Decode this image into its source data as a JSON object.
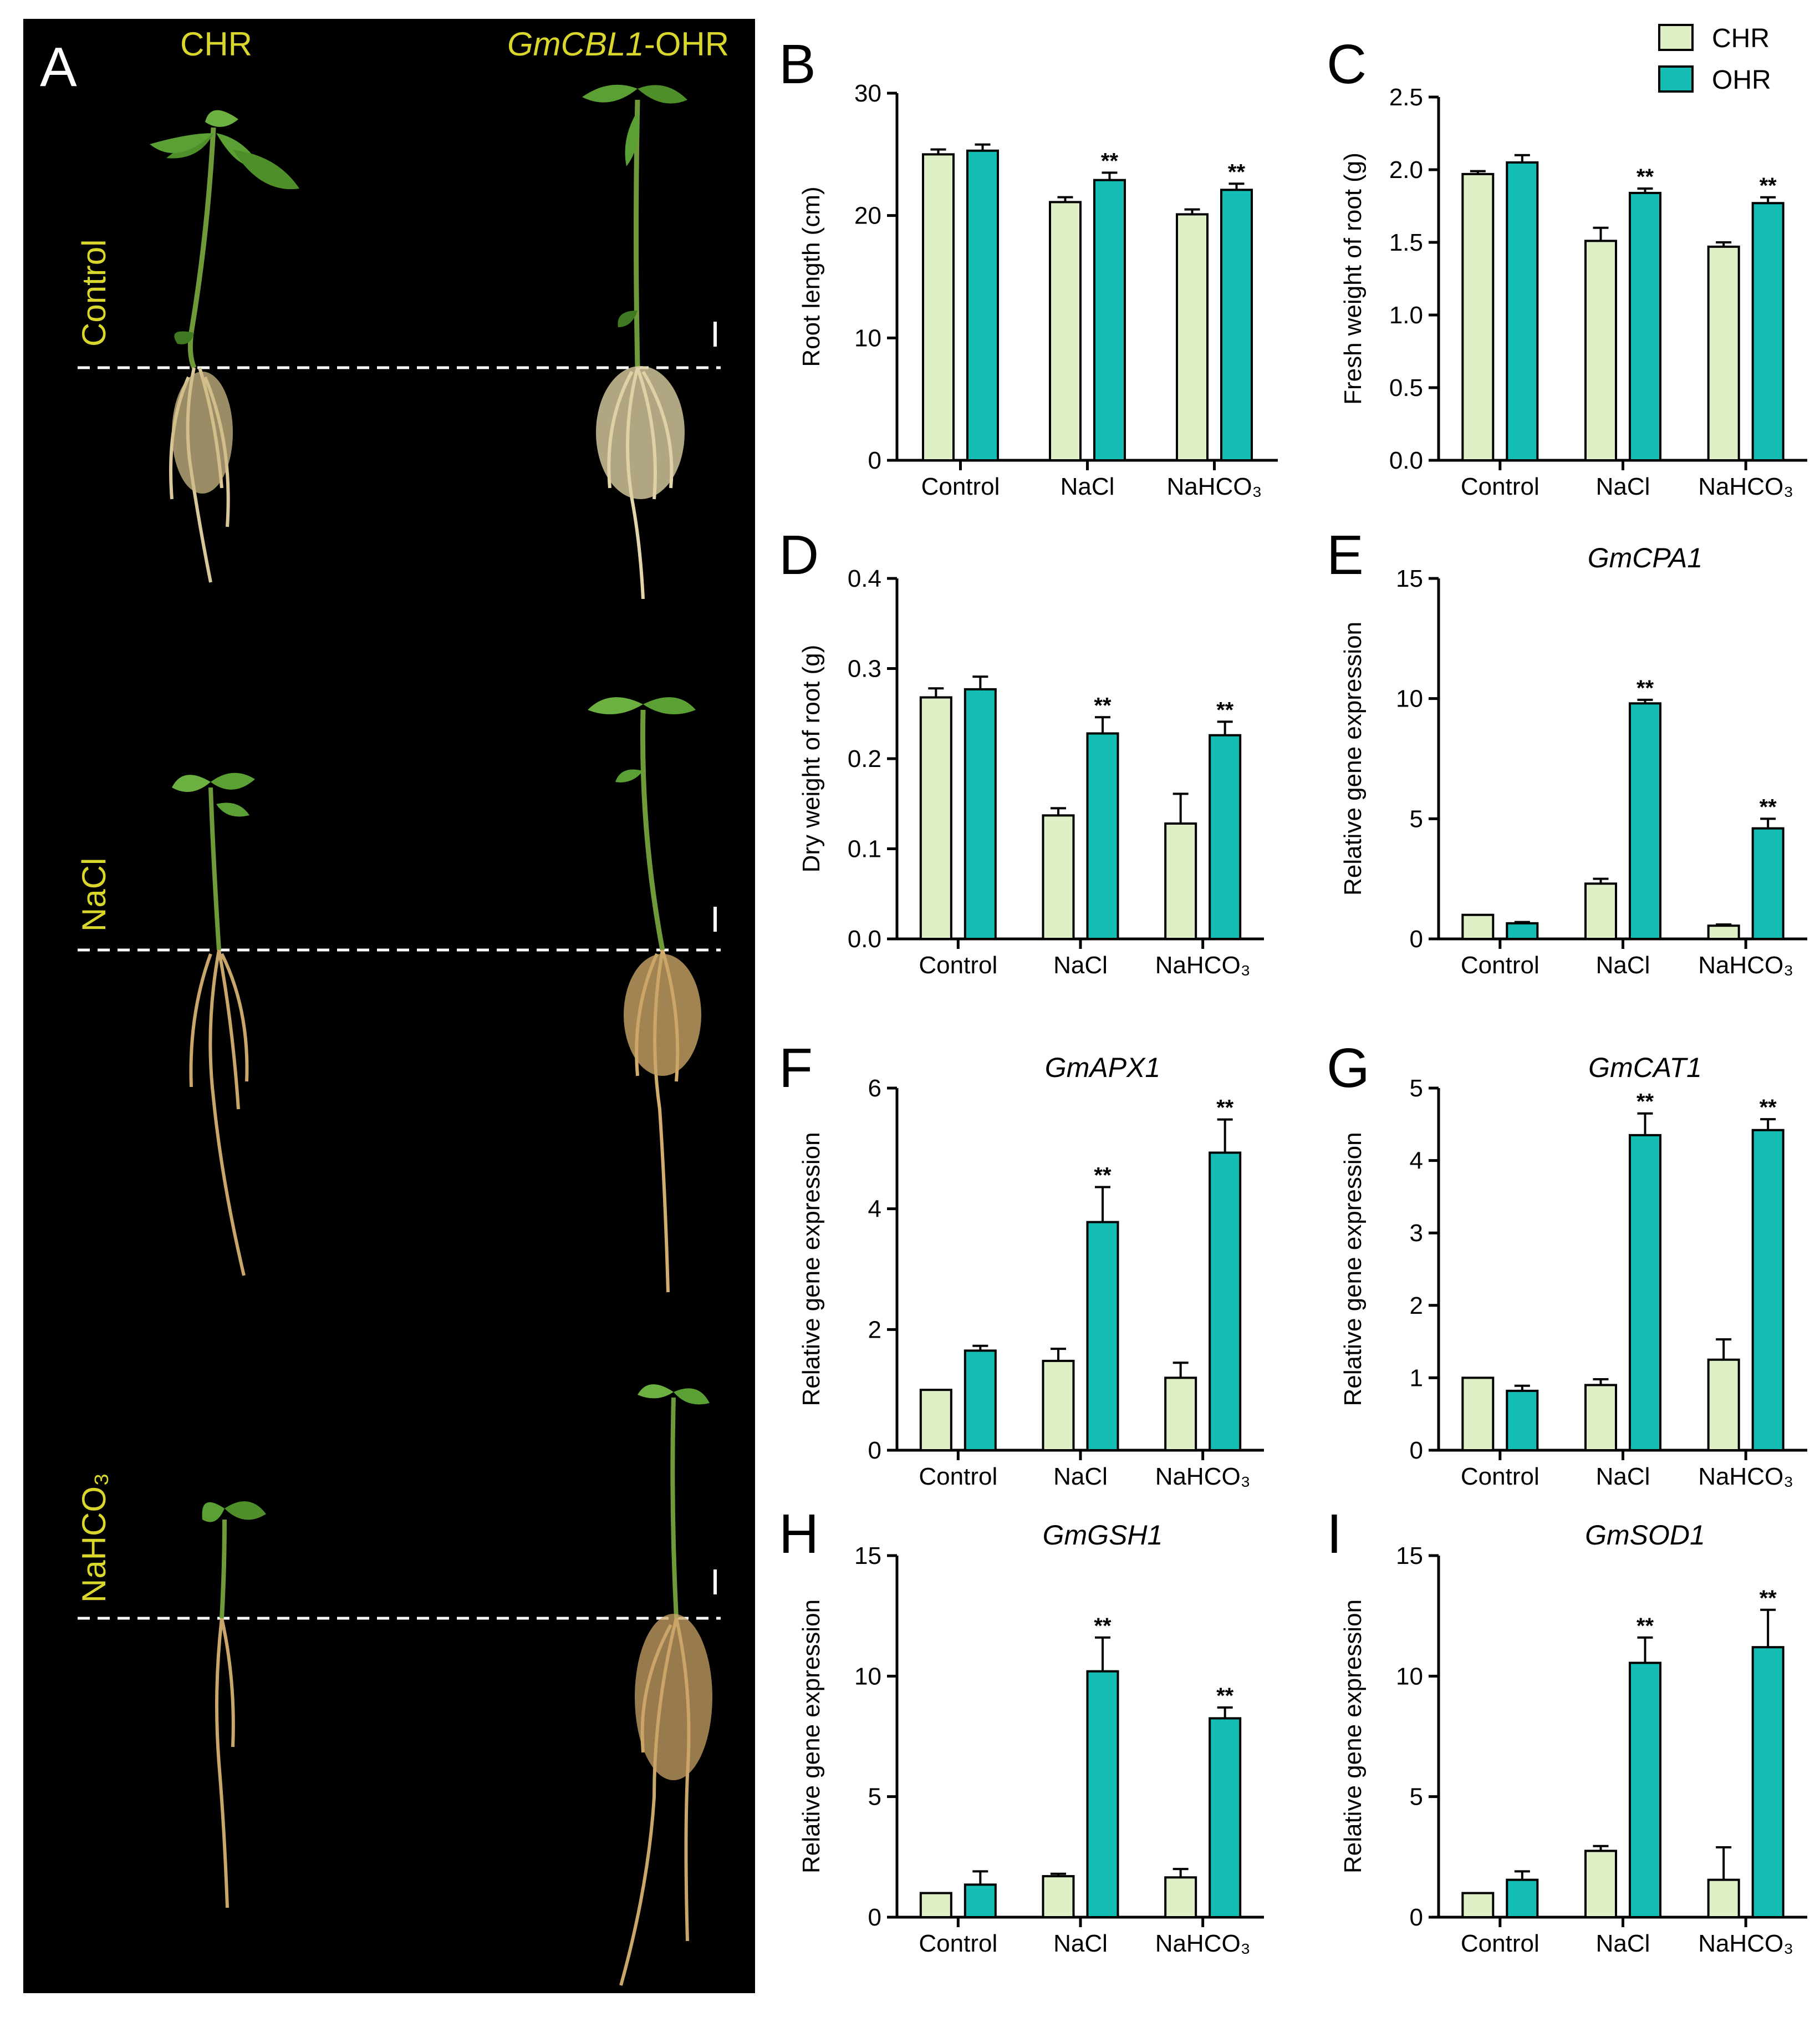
{
  "colors": {
    "chr": "#dff0c6",
    "ohr": "#14bdb3",
    "stroke": "#000000",
    "photo_label": "#d9d62c"
  },
  "photo_panel": {
    "letter": "A",
    "col_labels": [
      "CHR",
      "GmCBL1",
      "-OHR"
    ],
    "row_labels": [
      "Control",
      "NaCl",
      "NaHCO₃"
    ]
  },
  "legend": [
    "CHR",
    "OHR"
  ],
  "chart_data": [
    {
      "letter": "B",
      "type": "bar",
      "title": "",
      "ylabel": "Root length (cm)",
      "ylim": [
        0,
        30
      ],
      "yticks": [
        "0",
        "10",
        "20",
        "30"
      ],
      "categories": [
        "Control",
        "NaCl",
        "NaHCO₃"
      ],
      "series": [
        {
          "name": "CHR",
          "values": [
            25.0,
            21.1,
            20.1
          ],
          "errors": [
            0.4,
            0.4,
            0.4
          ]
        },
        {
          "name": "OHR",
          "values": [
            25.3,
            22.9,
            22.1
          ],
          "errors": [
            0.5,
            0.6,
            0.5
          ]
        }
      ],
      "sig": [
        "",
        "**",
        "**"
      ]
    },
    {
      "letter": "C",
      "type": "bar",
      "title": "",
      "ylabel": "Fresh weight of root (g)",
      "ylim": [
        0,
        2.5
      ],
      "yticks": [
        "0.0",
        "0.5",
        "1.0",
        "1.5",
        "2.0",
        "2.5"
      ],
      "categories": [
        "Control",
        "NaCl",
        "NaHCO₃"
      ],
      "series": [
        {
          "name": "CHR",
          "values": [
            1.97,
            1.51,
            1.47
          ],
          "errors": [
            0.02,
            0.09,
            0.03
          ]
        },
        {
          "name": "OHR",
          "values": [
            2.05,
            1.84,
            1.77
          ],
          "errors": [
            0.05,
            0.03,
            0.04
          ]
        }
      ],
      "sig": [
        "",
        "**",
        "**"
      ]
    },
    {
      "letter": "D",
      "type": "bar",
      "title": "",
      "ylabel": "Dry weight of root (g)",
      "ylim": [
        0,
        0.4
      ],
      "yticks": [
        "0.0",
        "0.1",
        "0.2",
        "0.3",
        "0.4"
      ],
      "categories": [
        "Control",
        "NaCl",
        "NaHCO₃"
      ],
      "series": [
        {
          "name": "CHR",
          "values": [
            0.268,
            0.137,
            0.128
          ],
          "errors": [
            0.01,
            0.008,
            0.033
          ]
        },
        {
          "name": "OHR",
          "values": [
            0.277,
            0.228,
            0.226
          ],
          "errors": [
            0.014,
            0.018,
            0.015
          ]
        }
      ],
      "sig": [
        "",
        "**",
        "**"
      ]
    },
    {
      "letter": "E",
      "type": "bar",
      "title": "GmCPA1",
      "ylabel": "Relative gene expression",
      "ylim": [
        0,
        15
      ],
      "yticks": [
        "0",
        "5",
        "10",
        "15"
      ],
      "categories": [
        "Control",
        "NaCl",
        "NaHCO₃"
      ],
      "series": [
        {
          "name": "CHR",
          "values": [
            1.0,
            2.3,
            0.55
          ],
          "errors": [
            0,
            0.2,
            0.05
          ]
        },
        {
          "name": "OHR",
          "values": [
            0.65,
            9.8,
            4.6
          ],
          "errors": [
            0.05,
            0.15,
            0.4
          ]
        }
      ],
      "sig": [
        "",
        "**",
        "**"
      ]
    },
    {
      "letter": "F",
      "type": "bar",
      "title": "GmAPX1",
      "ylabel": "Relative gene expression",
      "ylim": [
        0,
        6
      ],
      "yticks": [
        "0",
        "2",
        "4",
        "6"
      ],
      "categories": [
        "Control",
        "NaCl",
        "NaHCO₃"
      ],
      "series": [
        {
          "name": "CHR",
          "values": [
            1.0,
            1.48,
            1.2
          ],
          "errors": [
            0,
            0.2,
            0.25
          ]
        },
        {
          "name": "OHR",
          "values": [
            1.65,
            3.78,
            4.93
          ],
          "errors": [
            0.08,
            0.58,
            0.55
          ]
        }
      ],
      "sig": [
        "",
        "**",
        "**"
      ]
    },
    {
      "letter": "G",
      "type": "bar",
      "title": "GmCAT1",
      "ylabel": "Relative gene expression",
      "ylim": [
        0,
        5
      ],
      "yticks": [
        "0",
        "1",
        "2",
        "3",
        "4",
        "5"
      ],
      "categories": [
        "Control",
        "NaCl",
        "NaHCO₃"
      ],
      "series": [
        {
          "name": "CHR",
          "values": [
            1.0,
            0.9,
            1.25
          ],
          "errors": [
            0,
            0.08,
            0.28
          ]
        },
        {
          "name": "OHR",
          "values": [
            0.82,
            4.35,
            4.42
          ],
          "errors": [
            0.07,
            0.3,
            0.15
          ]
        }
      ],
      "sig": [
        "",
        "**",
        "**"
      ]
    },
    {
      "letter": "H",
      "type": "bar",
      "title": "GmGSH1",
      "ylabel": "Relative gene expression",
      "ylim": [
        0,
        15
      ],
      "yticks": [
        "0",
        "5",
        "10",
        "15"
      ],
      "categories": [
        "Control",
        "NaCl",
        "NaHCO₃"
      ],
      "series": [
        {
          "name": "CHR",
          "values": [
            1.0,
            1.7,
            1.65
          ],
          "errors": [
            0,
            0.1,
            0.35
          ]
        },
        {
          "name": "OHR",
          "values": [
            1.35,
            10.2,
            8.25
          ],
          "errors": [
            0.55,
            1.4,
            0.45
          ]
        }
      ],
      "sig": [
        "",
        "**",
        "**"
      ]
    },
    {
      "letter": "I",
      "type": "bar",
      "title": "GmSOD1",
      "ylabel": "Relative gene expression",
      "ylim": [
        0,
        15
      ],
      "yticks": [
        "0",
        "5",
        "10",
        "15"
      ],
      "categories": [
        "Control",
        "NaCl",
        "NaHCO₃"
      ],
      "series": [
        {
          "name": "CHR",
          "values": [
            1.0,
            2.75,
            1.55
          ],
          "errors": [
            0,
            0.2,
            1.35
          ]
        },
        {
          "name": "OHR",
          "values": [
            1.55,
            10.55,
            11.2
          ],
          "errors": [
            0.35,
            1.05,
            1.55
          ]
        }
      ],
      "sig": [
        "",
        "**",
        "**"
      ]
    }
  ]
}
